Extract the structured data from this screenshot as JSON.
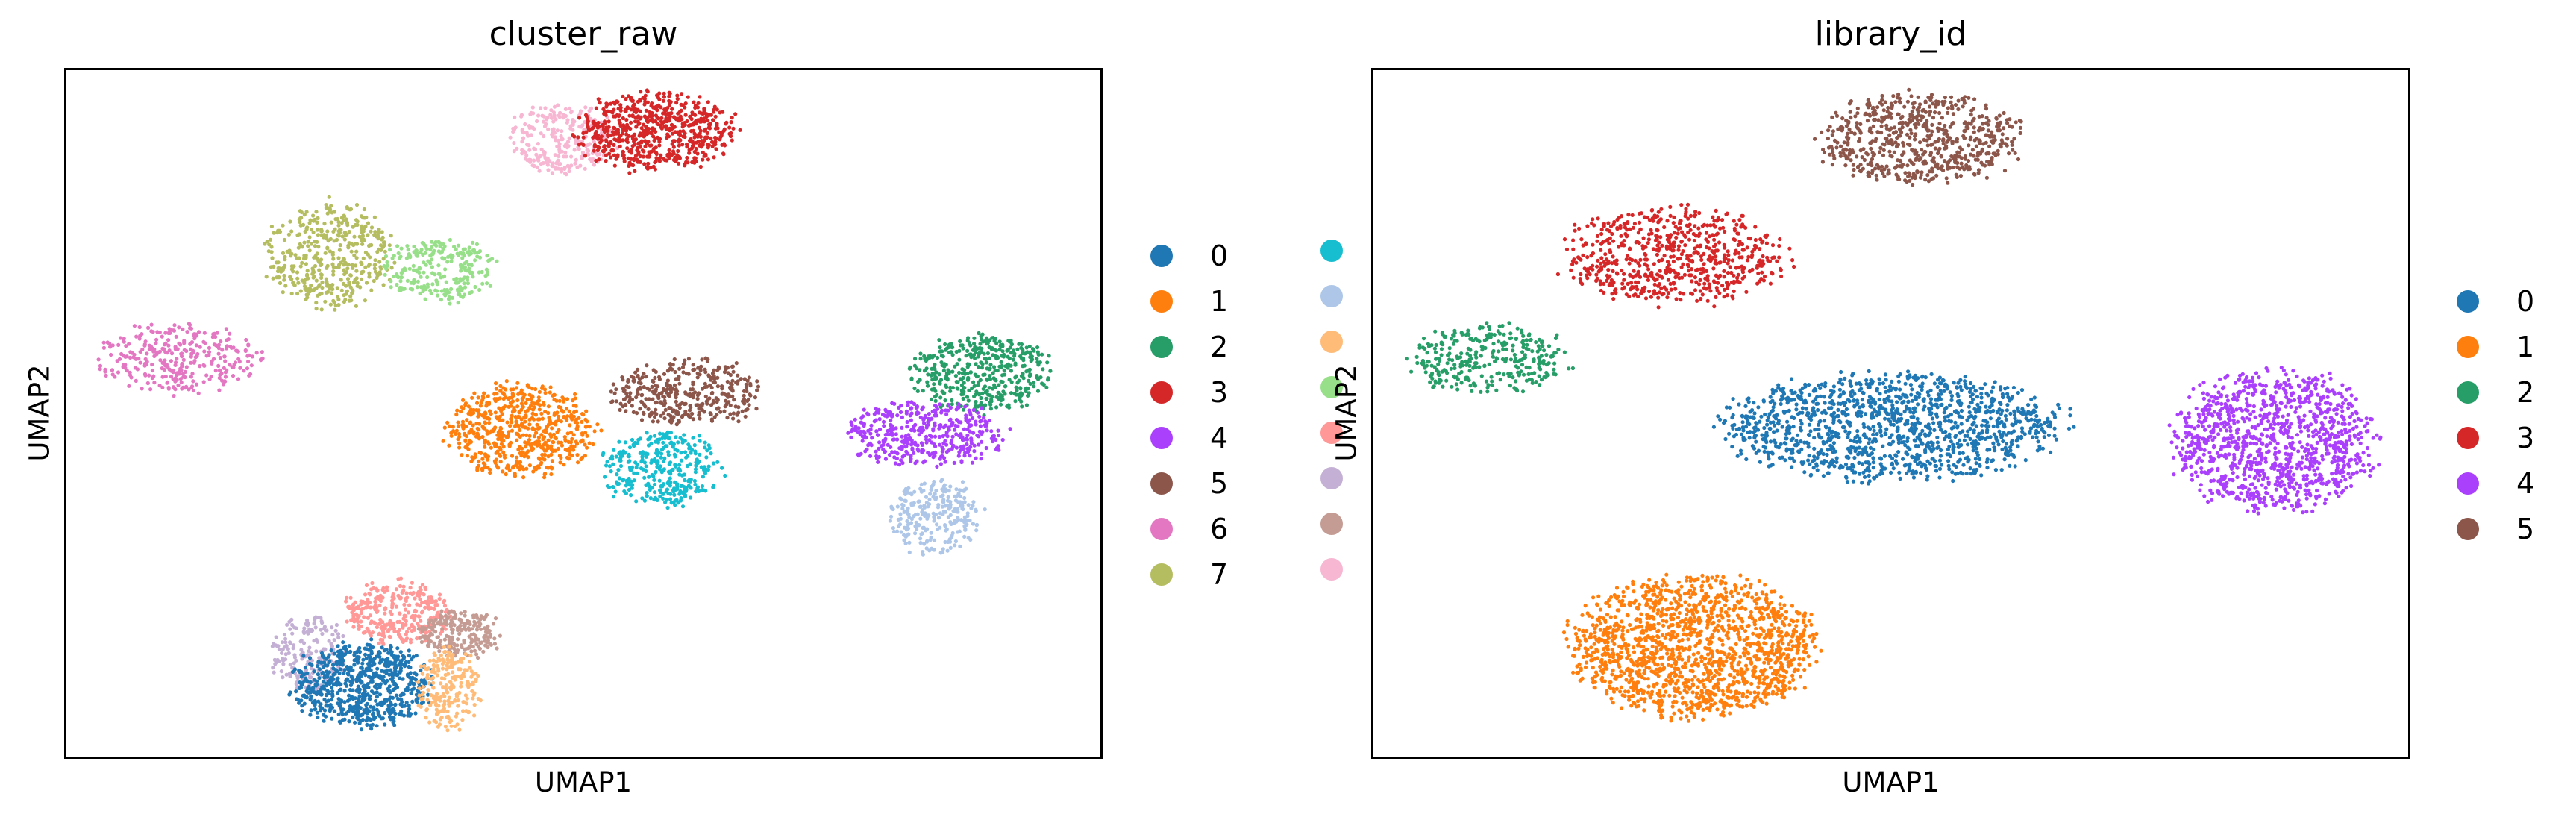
{
  "chart_data": [
    {
      "type": "scatter",
      "title": "cluster_raw",
      "xlabel": "UMAP1",
      "ylabel": "UMAP2",
      "ticks": "none",
      "grid": false,
      "legend_placement": "right, two columns",
      "legend": [
        {
          "label": "0",
          "color": "#1f77b4"
        },
        {
          "label": "1",
          "color": "#ff7f0e"
        },
        {
          "label": "2",
          "color": "#279e68"
        },
        {
          "label": "3",
          "color": "#d62728"
        },
        {
          "label": "4",
          "color": "#aa40fc"
        },
        {
          "label": "5",
          "color": "#8c564b"
        },
        {
          "label": "6",
          "color": "#e377c2"
        },
        {
          "label": "7",
          "color": "#b5bd61"
        },
        {
          "label": "",
          "color": "#17becf"
        },
        {
          "label": "",
          "color": "#aec7e8"
        },
        {
          "label": "",
          "color": "#ffbb78"
        },
        {
          "label": "",
          "color": "#98df8a"
        },
        {
          "label": "",
          "color": "#ff9896"
        },
        {
          "label": "",
          "color": "#c5b0d5"
        },
        {
          "label": "",
          "color": "#c49c94"
        },
        {
          "label": "",
          "color": "#f7b6d2"
        }
      ],
      "clusters": [
        {
          "color": "#f7b6d2",
          "cx": 0.48,
          "cy": 0.9,
          "rx": 0.05,
          "ry": 0.05,
          "n": 260
        },
        {
          "color": "#d62728",
          "cx": 0.57,
          "cy": 0.91,
          "rx": 0.075,
          "ry": 0.055,
          "n": 650
        },
        {
          "color": "#b5bd61",
          "cx": 0.255,
          "cy": 0.73,
          "rx": 0.06,
          "ry": 0.075,
          "n": 420
        },
        {
          "color": "#98df8a",
          "cx": 0.36,
          "cy": 0.71,
          "rx": 0.055,
          "ry": 0.045,
          "n": 250
        },
        {
          "color": "#e377c2",
          "cx": 0.11,
          "cy": 0.58,
          "rx": 0.075,
          "ry": 0.05,
          "n": 320
        },
        {
          "color": "#ff7f0e",
          "cx": 0.44,
          "cy": 0.475,
          "rx": 0.07,
          "ry": 0.065,
          "n": 600
        },
        {
          "color": "#8c564b",
          "cx": 0.6,
          "cy": 0.53,
          "rx": 0.07,
          "ry": 0.048,
          "n": 380
        },
        {
          "color": "#17becf",
          "cx": 0.575,
          "cy": 0.42,
          "rx": 0.055,
          "ry": 0.055,
          "n": 330
        },
        {
          "color": "#279e68",
          "cx": 0.885,
          "cy": 0.56,
          "rx": 0.065,
          "ry": 0.055,
          "n": 450
        },
        {
          "color": "#aa40fc",
          "cx": 0.83,
          "cy": 0.47,
          "rx": 0.075,
          "ry": 0.045,
          "n": 420
        },
        {
          "color": "#aec7e8",
          "cx": 0.84,
          "cy": 0.35,
          "rx": 0.045,
          "ry": 0.055,
          "n": 260
        },
        {
          "color": "#c5b0d5",
          "cx": 0.235,
          "cy": 0.15,
          "rx": 0.035,
          "ry": 0.055,
          "n": 200
        },
        {
          "color": "#ff9896",
          "cx": 0.32,
          "cy": 0.21,
          "rx": 0.05,
          "ry": 0.045,
          "n": 300
        },
        {
          "color": "#c49c94",
          "cx": 0.38,
          "cy": 0.18,
          "rx": 0.04,
          "ry": 0.035,
          "n": 220
        },
        {
          "color": "#1f77b4",
          "cx": 0.285,
          "cy": 0.105,
          "rx": 0.065,
          "ry": 0.06,
          "n": 700
        },
        {
          "color": "#ffbb78",
          "cx": 0.37,
          "cy": 0.1,
          "rx": 0.03,
          "ry": 0.06,
          "n": 220
        }
      ]
    },
    {
      "type": "scatter",
      "title": "library_id",
      "xlabel": "UMAP1",
      "ylabel": "UMAP2",
      "ticks": "none",
      "grid": false,
      "legend_placement": "right",
      "legend": [
        {
          "label": "0",
          "color": "#1f77b4"
        },
        {
          "label": "1",
          "color": "#ff7f0e"
        },
        {
          "label": "2",
          "color": "#279e68"
        },
        {
          "label": "3",
          "color": "#d62728"
        },
        {
          "label": "4",
          "color": "#aa40fc"
        },
        {
          "label": "5",
          "color": "#8c564b"
        }
      ],
      "clusters": [
        {
          "color": "#8c564b",
          "cx": 0.53,
          "cy": 0.9,
          "rx": 0.095,
          "ry": 0.065,
          "n": 650
        },
        {
          "color": "#d62728",
          "cx": 0.29,
          "cy": 0.73,
          "rx": 0.105,
          "ry": 0.07,
          "n": 650
        },
        {
          "color": "#279e68",
          "cx": 0.11,
          "cy": 0.58,
          "rx": 0.075,
          "ry": 0.05,
          "n": 320
        },
        {
          "color": "#1f77b4",
          "cx": 0.5,
          "cy": 0.48,
          "rx": 0.16,
          "ry": 0.075,
          "n": 1300
        },
        {
          "color": "#aa40fc",
          "cx": 0.87,
          "cy": 0.46,
          "rx": 0.095,
          "ry": 0.1,
          "n": 1100
        },
        {
          "color": "#ff7f0e",
          "cx": 0.31,
          "cy": 0.16,
          "rx": 0.115,
          "ry": 0.1,
          "n": 1500
        }
      ]
    }
  ]
}
